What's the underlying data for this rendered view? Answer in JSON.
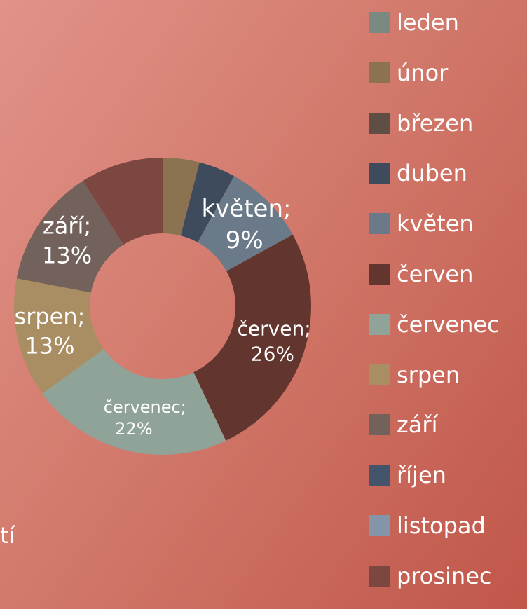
{
  "chart_data": {
    "type": "donut",
    "categories": [
      "leden",
      "únor",
      "březen",
      "duben",
      "květen",
      "červen",
      "červenec",
      "srpen",
      "září",
      "říjen",
      "listopad",
      "prosinec"
    ],
    "values": [
      0,
      4,
      0,
      4,
      9,
      26,
      22,
      13,
      13,
      0,
      0,
      9
    ],
    "value_labels": [
      null,
      null,
      null,
      null,
      "květen; 9%",
      "červen; 26%",
      "červenec; 22%",
      "srpen; 13%",
      "září; 13%",
      null,
      null,
      null
    ],
    "colors": [
      "#7b8a80",
      "#8b7352",
      "#5f4e44",
      "#3e4b5c",
      "#6b7a88",
      "#62362f",
      "#8fa398",
      "#a98e64",
      "#73625b",
      "#44546a",
      "#8595a9",
      "#7b4740"
    ],
    "annotation": "tí"
  }
}
